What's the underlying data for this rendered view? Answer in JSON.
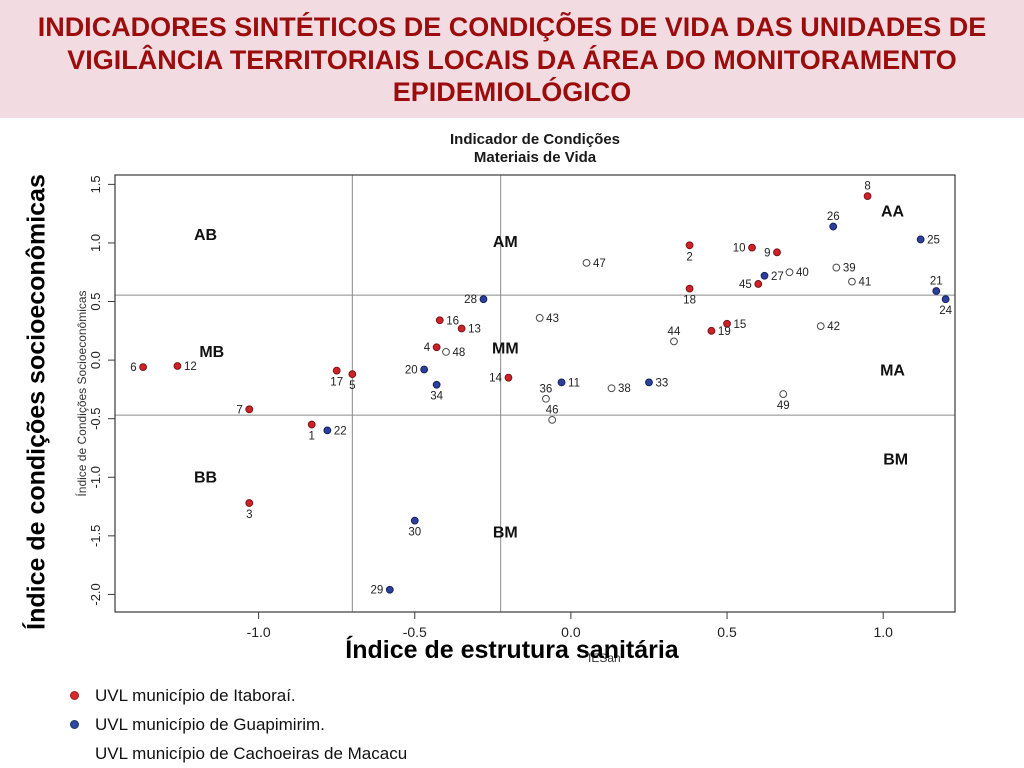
{
  "header": {
    "title": "INDICADORES SINTÉTICOS DE CONDIÇÕES DE VIDA DAS UNIDADES DE VIGILÂNCIA TERRITORIAIS LOCAIS DA ÁREA DO MONITORAMENTO EPIDEMIOLÓGICO",
    "bg_color": "#f2dce2",
    "text_color": "#9b0d0d"
  },
  "chart_data": {
    "type": "scatter",
    "title_lines": [
      "Indicador de Condições",
      "Materiais de Vida"
    ],
    "inner_ylabel": "Índice de Condições Socioeconômicas",
    "inner_xlabel": "IESan",
    "outer_ylabel": "Índice de condições socioeconômicas",
    "outer_xlabel": "Índice de estrutura sanitária",
    "xlim": [
      -1.46,
      1.23
    ],
    "ylim": [
      -2.15,
      1.58
    ],
    "x_ticks": [
      -1.0,
      -0.5,
      0.0,
      0.5,
      1.0
    ],
    "y_ticks": [
      1.5,
      1.0,
      0.5,
      0.0,
      -0.5,
      -1.0,
      -1.5,
      -2.0
    ],
    "divider_x": [
      -0.7,
      -0.225
    ],
    "divider_y": [
      0.555,
      -0.47
    ],
    "zone_labels": [
      {
        "text": "AB",
        "x": -1.17,
        "y": 1.07
      },
      {
        "text": "AM",
        "x": -0.21,
        "y": 1.01
      },
      {
        "text": "AA",
        "x": 1.03,
        "y": 1.27
      },
      {
        "text": "MB",
        "x": -1.15,
        "y": 0.07
      },
      {
        "text": "MM",
        "x": -0.21,
        "y": 0.1
      },
      {
        "text": "MA",
        "x": 1.03,
        "y": -0.09
      },
      {
        "text": "BB",
        "x": -1.17,
        "y": -1.0
      },
      {
        "text": "BM",
        "x": -0.21,
        "y": -1.47
      },
      {
        "text": "BM",
        "x": 1.04,
        "y": -0.85
      }
    ],
    "groups": {
      "I": {
        "name": "UVL município de Itaboraí.",
        "fill": "#cf2128",
        "stroke": "#7e1216"
      },
      "G": {
        "name": "UVL município de Guapimirim.",
        "fill": "#2b3f9e",
        "stroke": "#16225c"
      },
      "C": {
        "name": "UVL município de Cachoeiras de Macacu",
        "fill": "#ffffff",
        "stroke": "#4a4a4a"
      }
    },
    "points": [
      {
        "n": "1",
        "g": "I",
        "x": -0.83,
        "y": -0.55,
        "lp": "b"
      },
      {
        "n": "2",
        "g": "I",
        "x": 0.38,
        "y": 0.98,
        "lp": "b"
      },
      {
        "n": "3",
        "g": "I",
        "x": -1.03,
        "y": -1.22,
        "lp": "b"
      },
      {
        "n": "4",
        "g": "I",
        "x": -0.43,
        "y": 0.11,
        "lp": "l"
      },
      {
        "n": "5",
        "g": "I",
        "x": -0.7,
        "y": -0.12,
        "lp": "b"
      },
      {
        "n": "6",
        "g": "I",
        "x": -1.37,
        "y": -0.06,
        "lp": "l"
      },
      {
        "n": "7",
        "g": "I",
        "x": -1.03,
        "y": -0.42,
        "lp": "l"
      },
      {
        "n": "8",
        "g": "I",
        "x": 0.95,
        "y": 1.4,
        "lp": "a"
      },
      {
        "n": "9",
        "g": "I",
        "x": 0.66,
        "y": 0.92,
        "lp": "l"
      },
      {
        "n": "10",
        "g": "I",
        "x": 0.58,
        "y": 0.96,
        "lp": "l"
      },
      {
        "n": "11",
        "g": "G",
        "x": -0.03,
        "y": -0.19,
        "lp": "r"
      },
      {
        "n": "12",
        "g": "I",
        "x": -1.26,
        "y": -0.05,
        "lp": "r"
      },
      {
        "n": "13",
        "g": "I",
        "x": -0.35,
        "y": 0.27,
        "lp": "r"
      },
      {
        "n": "14",
        "g": "I",
        "x": -0.2,
        "y": -0.15,
        "lp": "l"
      },
      {
        "n": "15",
        "g": "I",
        "x": 0.5,
        "y": 0.31,
        "lp": "r"
      },
      {
        "n": "16",
        "g": "I",
        "x": -0.42,
        "y": 0.34,
        "lp": "r"
      },
      {
        "n": "17",
        "g": "I",
        "x": -0.75,
        "y": -0.09,
        "lp": "b"
      },
      {
        "n": "18",
        "g": "I",
        "x": 0.38,
        "y": 0.61,
        "lp": "b"
      },
      {
        "n": "19",
        "g": "I",
        "x": 0.45,
        "y": 0.25,
        "lp": "r"
      },
      {
        "n": "20",
        "g": "G",
        "x": -0.47,
        "y": -0.08,
        "lp": "l"
      },
      {
        "n": "21",
        "g": "G",
        "x": 1.17,
        "y": 0.59,
        "lp": "a"
      },
      {
        "n": "22",
        "g": "G",
        "x": -0.78,
        "y": -0.6,
        "lp": "r"
      },
      {
        "n": "24",
        "g": "G",
        "x": 1.2,
        "y": 0.52,
        "lp": "b"
      },
      {
        "n": "25",
        "g": "G",
        "x": 1.12,
        "y": 1.03,
        "lp": "r"
      },
      {
        "n": "26",
        "g": "G",
        "x": 0.84,
        "y": 1.14,
        "lp": "a"
      },
      {
        "n": "27",
        "g": "G",
        "x": 0.62,
        "y": 0.72,
        "lp": "r"
      },
      {
        "n": "28",
        "g": "G",
        "x": -0.28,
        "y": 0.52,
        "lp": "l"
      },
      {
        "n": "29",
        "g": "G",
        "x": -0.58,
        "y": -1.96,
        "lp": "l"
      },
      {
        "n": "30",
        "g": "G",
        "x": -0.5,
        "y": -1.37,
        "lp": "b"
      },
      {
        "n": "33",
        "g": "G",
        "x": 0.25,
        "y": -0.19,
        "lp": "r"
      },
      {
        "n": "34",
        "g": "G",
        "x": -0.43,
        "y": -0.21,
        "lp": "b"
      },
      {
        "n": "36",
        "g": "C",
        "x": -0.08,
        "y": -0.33,
        "lp": "a"
      },
      {
        "n": "38",
        "g": "C",
        "x": 0.13,
        "y": -0.24,
        "lp": "r"
      },
      {
        "n": "39",
        "g": "C",
        "x": 0.85,
        "y": 0.79,
        "lp": "r"
      },
      {
        "n": "40",
        "g": "C",
        "x": 0.7,
        "y": 0.75,
        "lp": "r"
      },
      {
        "n": "41",
        "g": "C",
        "x": 0.9,
        "y": 0.67,
        "lp": "r"
      },
      {
        "n": "42",
        "g": "C",
        "x": 0.8,
        "y": 0.29,
        "lp": "r"
      },
      {
        "n": "43",
        "g": "C",
        "x": -0.1,
        "y": 0.36,
        "lp": "r"
      },
      {
        "n": "44",
        "g": "C",
        "x": 0.33,
        "y": 0.16,
        "lp": "a"
      },
      {
        "n": "45",
        "g": "I",
        "x": 0.6,
        "y": 0.65,
        "lp": "l"
      },
      {
        "n": "46",
        "g": "C",
        "x": -0.06,
        "y": -0.51,
        "lp": "a"
      },
      {
        "n": "47",
        "g": "C",
        "x": 0.05,
        "y": 0.83,
        "lp": "r"
      },
      {
        "n": "48",
        "g": "C",
        "x": -0.4,
        "y": 0.07,
        "lp": "r"
      },
      {
        "n": "49",
        "g": "C",
        "x": 0.68,
        "y": -0.29,
        "lp": "b"
      }
    ]
  },
  "legend": {
    "items": [
      {
        "label": "UVL município de Itaboraí.",
        "marker_fill": "#d62b2b",
        "marker_border": "#a51f1f"
      },
      {
        "label": "UVL município de Guapimirim.",
        "marker_fill": "#2c4a9e",
        "marker_border": "#1d3270"
      },
      {
        "label": "UVL município de Cachoeiras de Macacu",
        "marker_fill": "#ffffff",
        "marker_border": "#ffffff"
      }
    ]
  }
}
